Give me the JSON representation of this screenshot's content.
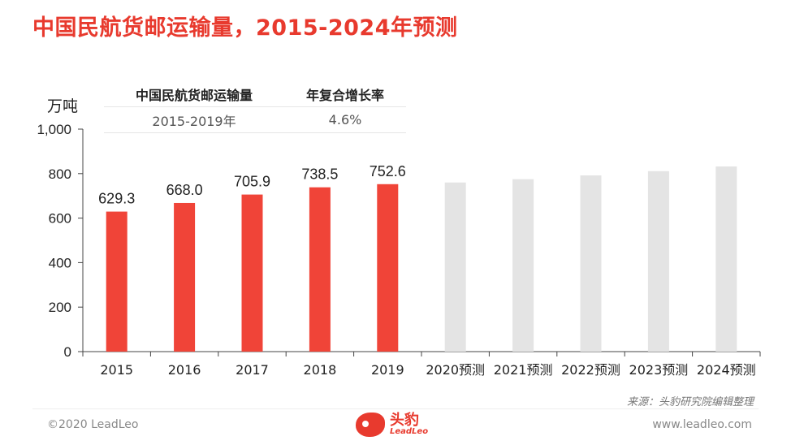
{
  "title": "中国民航货邮运输量，2015-2024年预测",
  "unit": "万吨",
  "cagr_table": {
    "header": [
      "中国民航货邮运输量",
      "年复合增长率"
    ],
    "row": [
      "2015-2019年",
      "4.6%"
    ]
  },
  "source": "来源：头豹研究院编辑整理",
  "copyright": "©2020 LeadLeo",
  "website": "www.leadleo.com",
  "logo": {
    "name": "头豹",
    "en": "LeadLeo"
  },
  "colors": {
    "actual": "#f04438",
    "forecast": "#e4e4e4",
    "title": "#e83a2e"
  },
  "chart_data": {
    "type": "bar",
    "categories": [
      "2015",
      "2016",
      "2017",
      "2018",
      "2019",
      "2020预测",
      "2021预测",
      "2022预测",
      "2023预测",
      "2024预测"
    ],
    "values": [
      629.3,
      668.0,
      705.9,
      738.5,
      752.6,
      760,
      775,
      792,
      811,
      832
    ],
    "data_labels": [
      "629.3",
      "668.0",
      "705.9",
      "738.5",
      "752.6",
      "",
      "",
      "",
      "",
      ""
    ],
    "forecast_from_index": 5,
    "ylim": [
      0,
      1000
    ],
    "yticks": [
      0,
      200,
      400,
      600,
      800,
      1000
    ],
    "ytick_labels": [
      "0",
      "200",
      "400",
      "600",
      "800",
      "1,000"
    ],
    "ylabel": "万吨",
    "grid": false
  }
}
